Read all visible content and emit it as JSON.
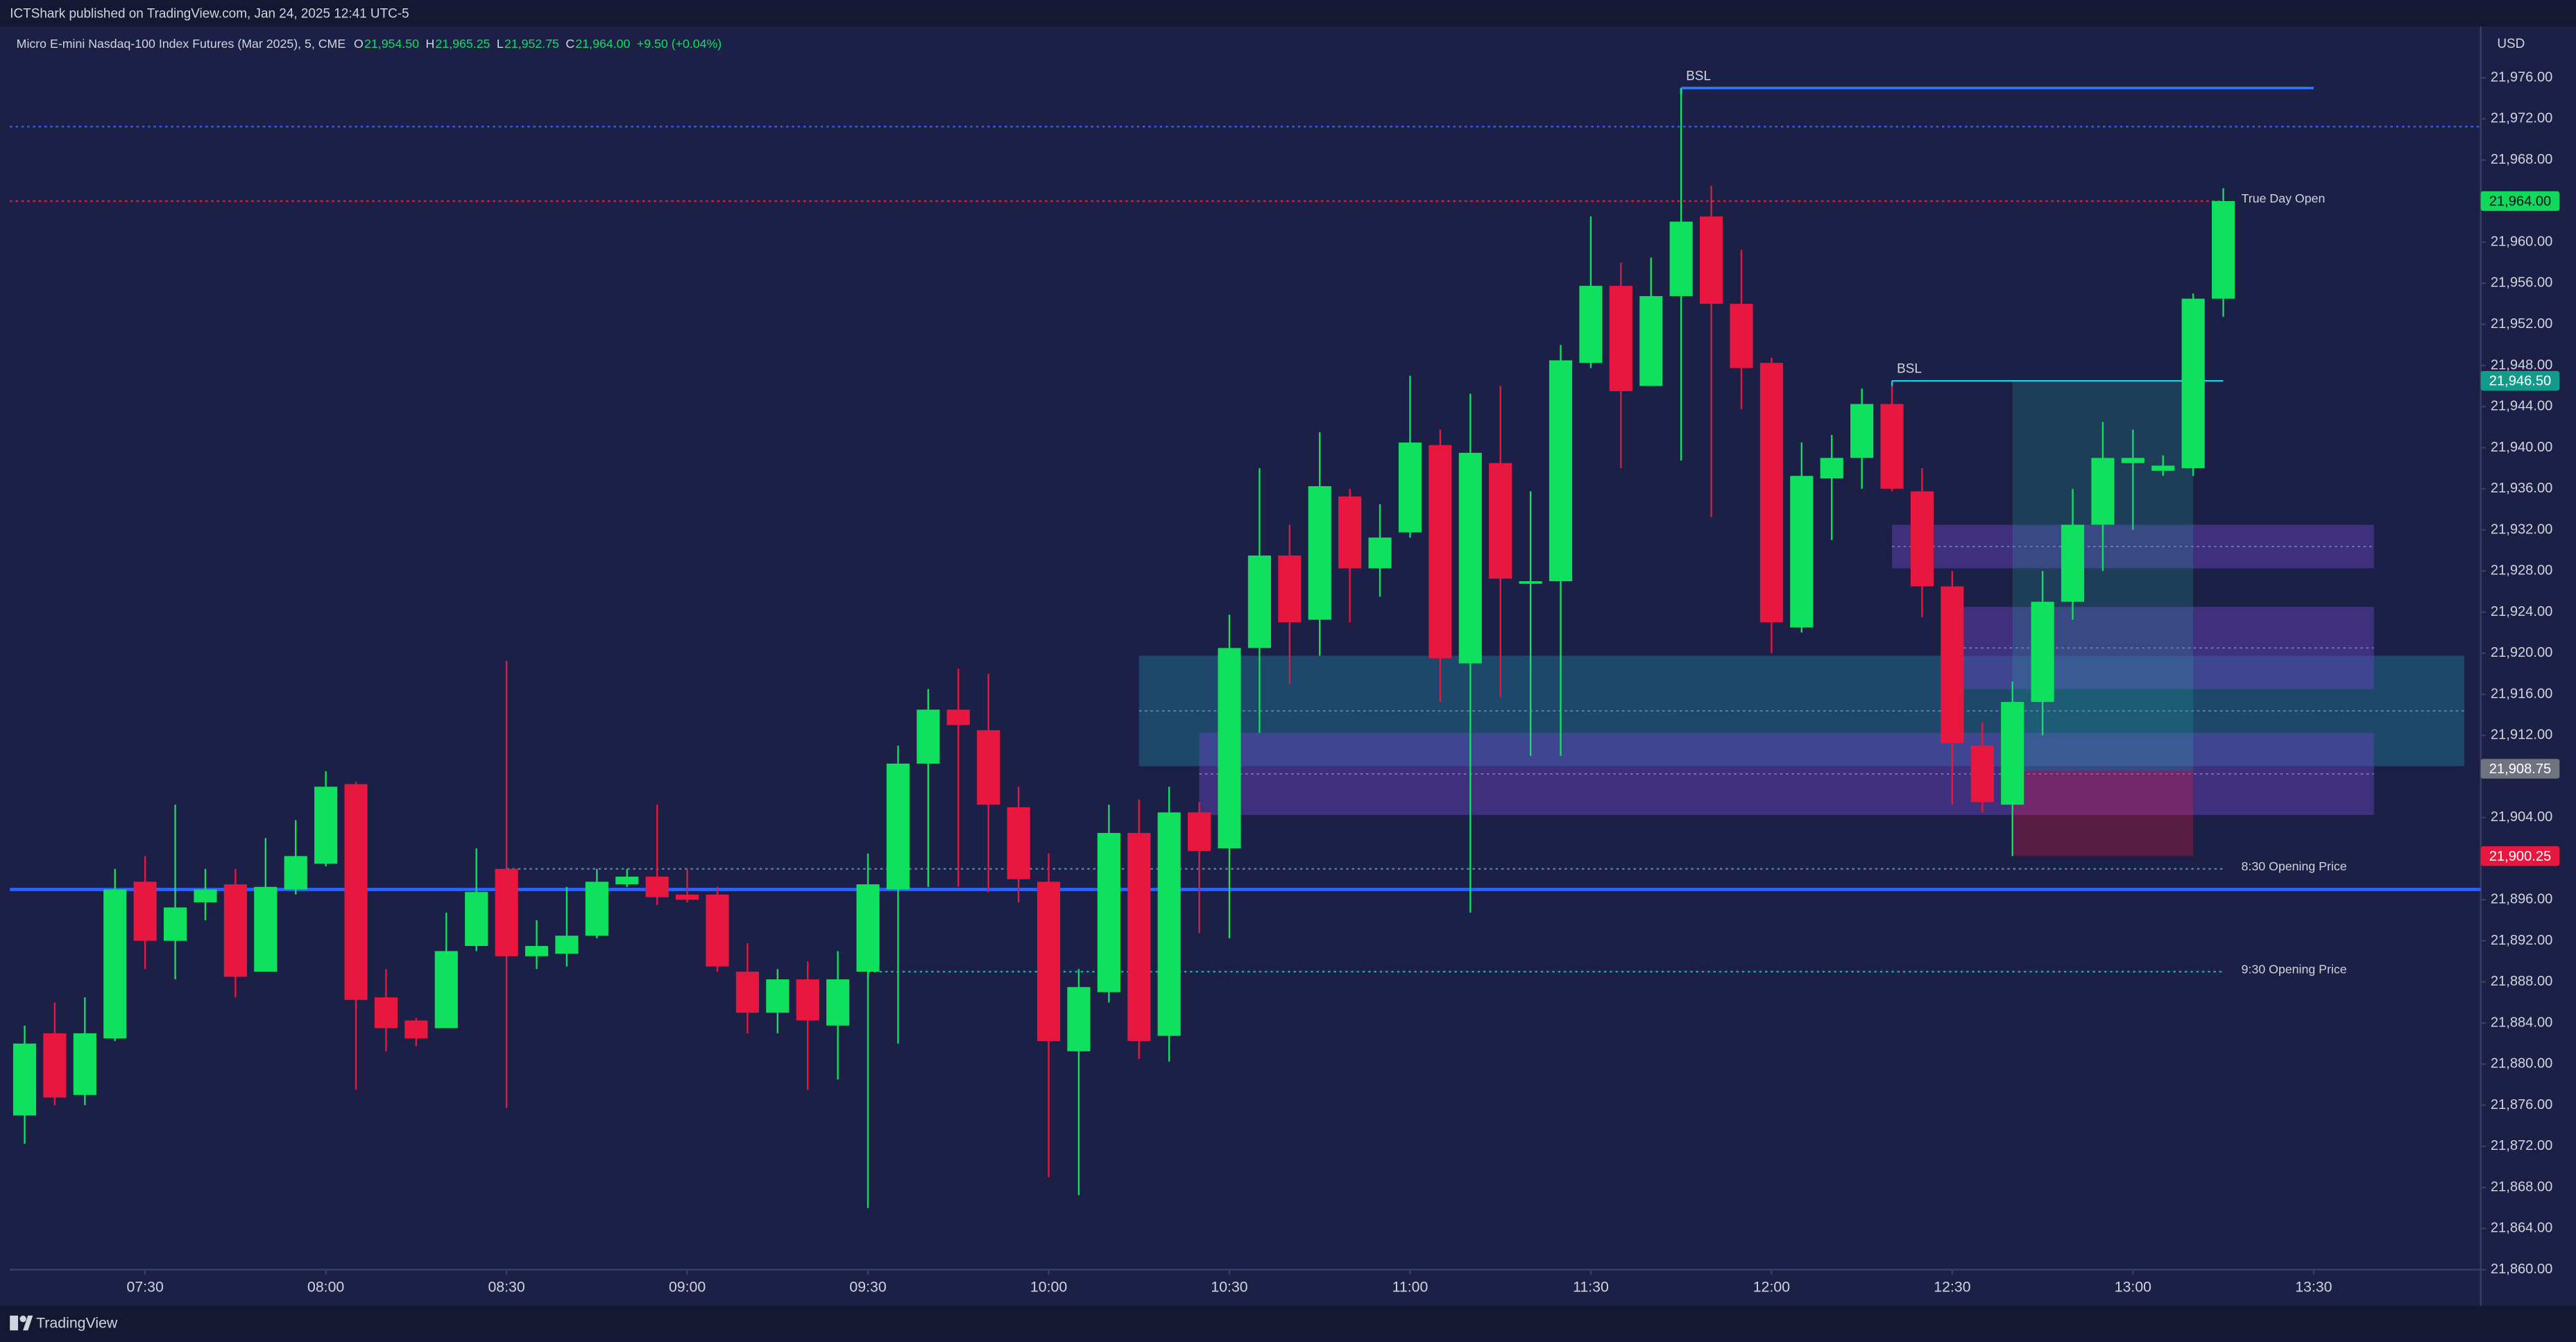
{
  "chart_data": {
    "type": "candlestick",
    "publisher": "ICTShark published on TradingView.com, Jan 24, 2025 12:41 UTC-5",
    "title": "Micro E-mini Nasdaq-100 Index Futures (Mar 2025), 5, CME",
    "legend_values": [
      {
        "key": "O",
        "value": "21,954.50"
      },
      {
        "key": "H",
        "value": "21,965.25"
      },
      {
        "key": "L",
        "value": "21,952.75"
      },
      {
        "key": "C",
        "value": "21,964.00"
      }
    ],
    "change": "+9.50 (+0.04%)",
    "currency": "USD",
    "brand": "TradingView",
    "up_color": "#0fe05e",
    "down_color": "#e8173f",
    "x": [
      "07:10",
      "07:15",
      "07:20",
      "07:25",
      "07:30",
      "07:35",
      "07:40",
      "07:45",
      "07:50",
      "07:55",
      "08:00",
      "08:05",
      "08:10",
      "08:15",
      "08:20",
      "08:25",
      "08:30",
      "08:35",
      "08:40",
      "08:45",
      "08:50",
      "08:55",
      "09:00",
      "09:05",
      "09:10",
      "09:15",
      "09:20",
      "09:25",
      "09:30",
      "09:35",
      "09:40",
      "09:45",
      "09:50",
      "09:55",
      "10:00",
      "10:05",
      "10:10",
      "10:15",
      "10:20",
      "10:25",
      "10:30",
      "10:35",
      "10:40",
      "10:45",
      "10:50",
      "10:55",
      "11:00",
      "11:05",
      "11:10",
      "11:15",
      "11:20",
      "11:25",
      "11:30",
      "11:35",
      "11:40",
      "11:45",
      "11:50",
      "11:55",
      "12:00",
      "12:05",
      "12:10",
      "12:15",
      "12:20",
      "12:25",
      "12:30",
      "12:35",
      "12:40",
      "12:45",
      "12:50",
      "12:55",
      "13:00",
      "13:05",
      "13:10",
      "13:15"
    ],
    "open": [
      21875,
      21883,
      21877,
      21882.5,
      21897.75,
      21892,
      21895.75,
      21897.5,
      21889,
      21897,
      21899.5,
      21907.25,
      21886.5,
      21884.25,
      21883.5,
      21891.5,
      21899,
      21890.5,
      21890.75,
      21892.5,
      21897.5,
      21898.25,
      21896.5,
      21896.5,
      21889,
      21885,
      21888.25,
      21883.75,
      21889,
      21897,
      21909.25,
      21914.5,
      21912.5,
      21905,
      21897.75,
      21881.25,
      21887,
      21902.5,
      21882.75,
      21904.5,
      21901,
      21920.5,
      21929.5,
      21923.25,
      21935.25,
      21928.25,
      21931.75,
      21940.25,
      21919,
      21938.5,
      21926.75,
      21927,
      21948.25,
      21955.75,
      21946,
      21954.75,
      21962.5,
      21954,
      21948.25,
      21922.5,
      21937,
      21939,
      21944.25,
      21935.75,
      21926.5,
      21911,
      21905.25,
      21915.25,
      21925,
      21932.5,
      21938.5,
      21937.75,
      21938,
      21954.5
    ],
    "high": [
      21883.75,
      21886,
      21886.5,
      21899,
      21900.25,
      21905.25,
      21899,
      21899,
      21902,
      21903.75,
      21908.5,
      21907.5,
      21889.25,
      21884.5,
      21894.75,
      21901,
      21919.25,
      21894,
      21897.25,
      21899,
      21899,
      21905.25,
      21899,
      21897.25,
      21891.75,
      21889.25,
      21890,
      21891,
      21900.5,
      21911,
      21916.5,
      21918.5,
      21918,
      21907,
      21900.5,
      21889.25,
      21905.25,
      21905.75,
      21907,
      21905.5,
      21923.75,
      21938,
      21932.5,
      21941.5,
      21936,
      21934.5,
      21947,
      21941.75,
      21945.25,
      21946,
      21935.75,
      21950,
      21962.5,
      21958,
      21958.5,
      21975,
      21965.5,
      21959.25,
      21948.75,
      21940.5,
      21941.25,
      21945.75,
      21946,
      21938,
      21928,
      21913.25,
      21917.25,
      21928,
      21936,
      21942.5,
      21941.75,
      21939.25,
      21955,
      21965.25
    ],
    "low": [
      21872.25,
      21876,
      21876,
      21882.25,
      21889.25,
      21888.25,
      21894,
      21886.5,
      21889,
      21896.5,
      21899.25,
      21877.5,
      21881.25,
      21881.75,
      21883.5,
      21891,
      21875.75,
      21889.25,
      21889.5,
      21892.25,
      21897.25,
      21895.5,
      21895.75,
      21889,
      21883,
      21883,
      21877.5,
      21878.5,
      21866,
      21882,
      21897.25,
      21897.25,
      21896.75,
      21895.75,
      21869,
      21867.25,
      21886,
      21880.5,
      21880.25,
      21892.75,
      21892.25,
      21912.25,
      21917,
      21919.75,
      21923,
      21925.5,
      21931.25,
      21915.25,
      21894.75,
      21915.75,
      21910,
      21910,
      21947.75,
      21938,
      21946,
      21938.75,
      21933.25,
      21943.75,
      21920,
      21922,
      21931,
      21936,
      21935.75,
      21923.5,
      21905.25,
      21904.5,
      21900.25,
      21912,
      21923.25,
      21928,
      21932,
      21937.25,
      21937.25,
      21952.75
    ],
    "close": [
      21882,
      21876.75,
      21883,
      21897,
      21892,
      21895.25,
      21897,
      21888.5,
      21897.25,
      21900.25,
      21907,
      21886.25,
      21883.5,
      21882.5,
      21891,
      21896.75,
      21890.5,
      21891.5,
      21892.5,
      21897.75,
      21898.25,
      21896.25,
      21896,
      21889.5,
      21885,
      21888.25,
      21884.25,
      21888.25,
      21897.5,
      21909.25,
      21914.5,
      21913,
      21905.25,
      21898,
      21882.25,
      21887.5,
      21902.5,
      21882.25,
      21904.5,
      21900.75,
      21920.5,
      21929.5,
      21923,
      21936.25,
      21928.25,
      21931.25,
      21940.5,
      21919.5,
      21939.5,
      21927.25,
      21927,
      21948.5,
      21955.75,
      21945.5,
      21954.75,
      21962,
      21954,
      21947.75,
      21923,
      21937.25,
      21939,
      21944.25,
      21936,
      21926.5,
      21911.25,
      21905.5,
      21915.25,
      21925,
      21932.5,
      21939,
      21939,
      21938.25,
      21954.5,
      21964
    ],
    "ylim": [
      21860,
      21981
    ],
    "yticks": [
      {
        "value": 21860,
        "label": "21,860.00"
      },
      {
        "value": 21864,
        "label": "21,864.00"
      },
      {
        "value": 21868,
        "label": "21,868.00"
      },
      {
        "value": 21872,
        "label": "21,872.00"
      },
      {
        "value": 21876,
        "label": "21,876.00"
      },
      {
        "value": 21880,
        "label": "21,880.00"
      },
      {
        "value": 21884,
        "label": "21,884.00"
      },
      {
        "value": 21888,
        "label": "21,888.00"
      },
      {
        "value": 21892,
        "label": "21,892.00"
      },
      {
        "value": 21896,
        "label": "21,896.00"
      },
      {
        "value": 21904,
        "label": "21,904.00"
      },
      {
        "value": 21912,
        "label": "21,912.00"
      },
      {
        "value": 21916,
        "label": "21,916.00"
      },
      {
        "value": 21920,
        "label": "21,920.00"
      },
      {
        "value": 21924,
        "label": "21,924.00"
      },
      {
        "value": 21928,
        "label": "21,928.00"
      },
      {
        "value": 21932,
        "label": "21,932.00"
      },
      {
        "value": 21936,
        "label": "21,936.00"
      },
      {
        "value": 21940,
        "label": "21,940.00"
      },
      {
        "value": 21944,
        "label": "21,944.00"
      },
      {
        "value": 21948,
        "label": "21,948.00"
      },
      {
        "value": 21952,
        "label": "21,952.00"
      },
      {
        "value": 21956,
        "label": "21,956.00"
      },
      {
        "value": 21960,
        "label": "21,960.00"
      },
      {
        "value": 21968,
        "label": "21,968.00"
      },
      {
        "value": 21972,
        "label": "21,972.00"
      },
      {
        "value": 21976,
        "label": "21,976.00"
      }
    ],
    "xticks": [
      "07:30",
      "08:00",
      "08:30",
      "09:00",
      "09:30",
      "10:00",
      "10:30",
      "11:00",
      "11:30",
      "12:00",
      "12:30",
      "13:00",
      "13:30"
    ],
    "price_labels": [
      {
        "value": 21964,
        "label": "21,964.00",
        "color": "#0fd85a",
        "text_color": "#0b0e1a"
      },
      {
        "value": 21946.5,
        "label": "21,946.50",
        "color": "#129a8a",
        "text_color": "#ffffff"
      },
      {
        "value": 21908.75,
        "label": "21,908.75",
        "color": "#6f7380",
        "text_color": "#ffffff"
      },
      {
        "value": 21900.25,
        "label": "21,900.25",
        "color": "#e8173f",
        "text_color": "#ffffff"
      }
    ],
    "zones": [
      {
        "low": 21909,
        "high": 21919.75,
        "start": "10:15",
        "end": "13:55",
        "color": "#1f7a9a",
        "opacity": 0.45,
        "midline": true
      },
      {
        "low": 21904.25,
        "high": 21912.25,
        "start": "10:25",
        "end": "13:40",
        "color": "#6a45c2",
        "opacity": 0.45,
        "midline": true
      },
      {
        "low": 21916.5,
        "high": 21924.5,
        "start": "12:30",
        "end": "13:40",
        "color": "#6a45c2",
        "opacity": 0.45,
        "midline": true
      },
      {
        "low": 21928.25,
        "high": 21932.5,
        "start": "12:20",
        "end": "13:40",
        "color": "#6a45c2",
        "opacity": 0.45,
        "midline": true
      },
      {
        "low": 21908.5,
        "high": 21946.5,
        "start": "12:40",
        "end": "13:10",
        "color": "#26a69a",
        "opacity": 0.22,
        "midline": false
      },
      {
        "low": 21900.25,
        "high": 21908.5,
        "start": "12:40",
        "end": "13:10",
        "color": "#e8173f",
        "opacity": 0.3,
        "midline": false
      }
    ],
    "levels": [
      {
        "value": 21971.25,
        "color": "#2962ff",
        "dash": "dotted",
        "line_width": 1
      },
      {
        "value": 21964,
        "color": "#e8173f",
        "dash": "dotted",
        "line_width": 1,
        "end": "13:15",
        "label": "True Day Open",
        "label_position": "end"
      },
      {
        "value": 21897,
        "color": "#2962ff",
        "dash": "solid",
        "line_width": 2
      },
      {
        "value": 21899,
        "color": "#4a86a8",
        "dash": "dotted",
        "line_width": 1,
        "start": "08:30",
        "end": "13:15",
        "label": "8:30 Opening Price",
        "label_position": "end"
      },
      {
        "value": 21889,
        "color": "#26a69a",
        "dash": "dotted",
        "line_width": 1,
        "start": "09:30",
        "end": "13:15",
        "label": "9:30 Opening Price",
        "label_position": "end"
      },
      {
        "value": 21975,
        "color": "#2979ff",
        "dash": "solid",
        "line_width": 1.5,
        "start": "11:45",
        "end": "13:30",
        "label": "BSL",
        "label_position": "start"
      },
      {
        "value": 21946.5,
        "color": "#26c6da",
        "dash": "solid",
        "line_width": 1,
        "start": "12:20",
        "end": "13:15",
        "label": "BSL",
        "label_position": "start"
      }
    ]
  }
}
